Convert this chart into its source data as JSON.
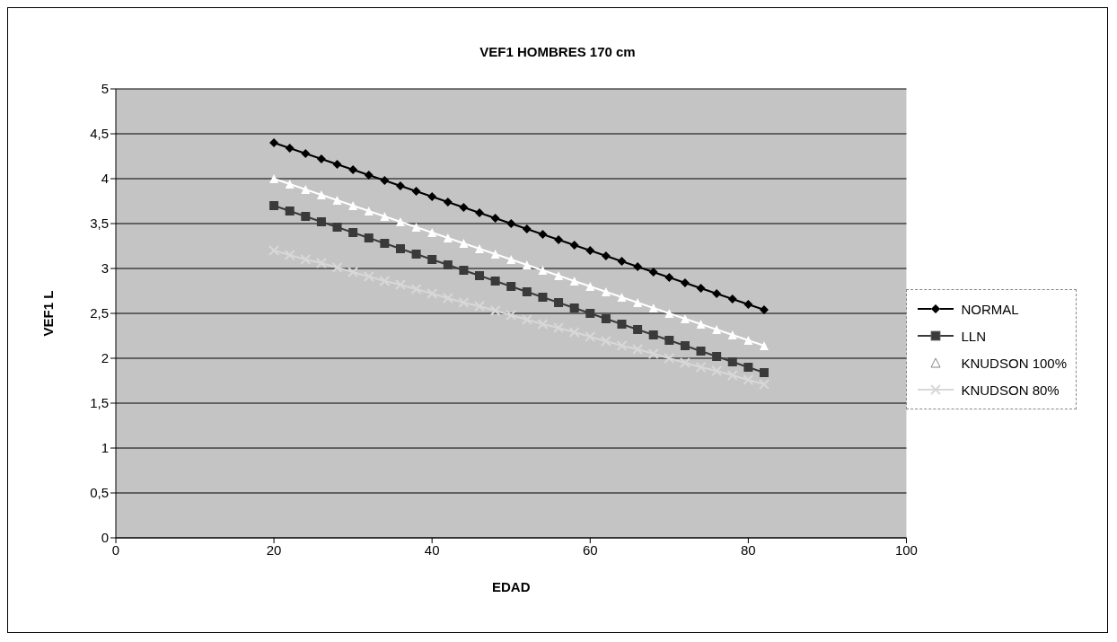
{
  "chart_data": {
    "type": "line",
    "title": "VEF1 HOMBRES 170 cm",
    "xlabel": "EDAD",
    "ylabel": "VEF1 L",
    "x": [
      20,
      22,
      24,
      26,
      28,
      30,
      32,
      34,
      36,
      38,
      40,
      42,
      44,
      46,
      48,
      50,
      52,
      54,
      56,
      58,
      60,
      62,
      64,
      66,
      68,
      70,
      72,
      74,
      76,
      78,
      80,
      82
    ],
    "series": [
      {
        "name": "NORMAL",
        "color": "#000000",
        "marker": "diamond",
        "values": [
          4.4,
          4.34,
          4.28,
          4.22,
          4.16,
          4.1,
          4.04,
          3.98,
          3.92,
          3.86,
          3.8,
          3.74,
          3.68,
          3.62,
          3.56,
          3.5,
          3.44,
          3.38,
          3.32,
          3.26,
          3.2,
          3.14,
          3.08,
          3.02,
          2.96,
          2.9,
          2.84,
          2.78,
          2.72,
          2.66,
          2.6,
          2.54
        ]
      },
      {
        "name": "LLN",
        "color": "#3a3a3a",
        "marker": "square",
        "values": [
          3.7,
          3.64,
          3.58,
          3.52,
          3.46,
          3.4,
          3.34,
          3.28,
          3.22,
          3.16,
          3.1,
          3.04,
          2.98,
          2.92,
          2.86,
          2.8,
          2.74,
          2.68,
          2.62,
          2.56,
          2.5,
          2.44,
          2.38,
          2.32,
          2.26,
          2.2,
          2.14,
          2.08,
          2.02,
          1.96,
          1.9,
          1.84
        ]
      },
      {
        "name": "KNUDSON 100%",
        "color": "#ffffff",
        "marker": "triangle",
        "values": [
          4.0,
          3.94,
          3.88,
          3.82,
          3.76,
          3.7,
          3.64,
          3.58,
          3.52,
          3.46,
          3.4,
          3.34,
          3.28,
          3.22,
          3.16,
          3.1,
          3.04,
          2.98,
          2.92,
          2.86,
          2.8,
          2.74,
          2.68,
          2.62,
          2.56,
          2.5,
          2.44,
          2.38,
          2.32,
          2.26,
          2.2,
          2.14
        ]
      },
      {
        "name": "KNUDSON 80%",
        "color": "#d8d8d8",
        "marker": "cross",
        "values": [
          3.2,
          3.15,
          3.1,
          3.06,
          3.01,
          2.96,
          2.91,
          2.86,
          2.82,
          2.77,
          2.72,
          2.67,
          2.62,
          2.58,
          2.53,
          2.48,
          2.43,
          2.38,
          2.34,
          2.29,
          2.24,
          2.19,
          2.14,
          2.1,
          2.05,
          2.0,
          1.95,
          1.9,
          1.86,
          1.81,
          1.76,
          1.71
        ]
      }
    ],
    "xlim": [
      0,
      100
    ],
    "xticks": [
      0,
      20,
      40,
      60,
      80,
      100
    ],
    "ylim": [
      0,
      5
    ],
    "yticks": [
      {
        "value": 0,
        "label": "0"
      },
      {
        "value": 0.5,
        "label": "0,5"
      },
      {
        "value": 1,
        "label": "1"
      },
      {
        "value": 1.5,
        "label": "1,5"
      },
      {
        "value": 2,
        "label": "2"
      },
      {
        "value": 2.5,
        "label": "2,5"
      },
      {
        "value": 3,
        "label": "3"
      },
      {
        "value": 3.5,
        "label": "3,5"
      },
      {
        "value": 4,
        "label": "4"
      },
      {
        "value": 4.5,
        "label": "4,5"
      },
      {
        "value": 5,
        "label": "5"
      }
    ],
    "grid": "y",
    "legend": "right"
  }
}
